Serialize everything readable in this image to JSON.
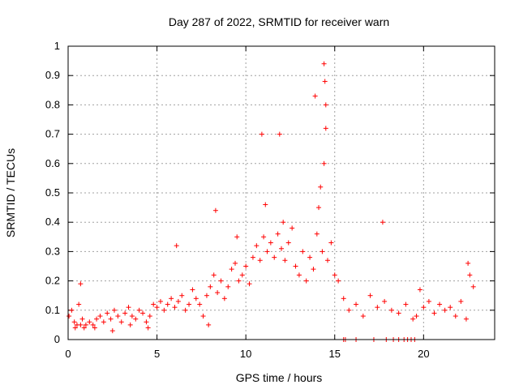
{
  "chart_data": {
    "type": "scatter",
    "title": "Day 287 of 2022, SRMTID for receiver warn",
    "xlabel": "GPS time / hours",
    "ylabel": "SRMTID / TECUs",
    "xlim": [
      0,
      24
    ],
    "ylim": [
      0,
      1
    ],
    "xticks": [
      0,
      5,
      10,
      15,
      20
    ],
    "xtick_labels": [
      "0",
      "5",
      "10",
      "15",
      "20"
    ],
    "yticks": [
      0,
      0.1,
      0.2,
      0.3,
      0.4,
      0.5,
      0.6,
      0.7,
      0.8,
      0.9,
      1
    ],
    "ytick_labels": [
      "0",
      "0.1",
      "0.2",
      "0.3",
      "0.4",
      "0.5",
      "0.6",
      "0.7",
      "0.8",
      "0.9",
      "1"
    ],
    "grid": true,
    "marker": "plus",
    "color": "#ff0000",
    "series": [
      {
        "name": "SRMTID",
        "x": [
          0.05,
          0.2,
          0.35,
          0.5,
          0.6,
          0.7,
          0.8,
          0.9,
          1.0,
          1.2,
          1.4,
          1.6,
          1.8,
          2.0,
          2.2,
          2.4,
          2.6,
          2.8,
          3.0,
          3.2,
          3.4,
          3.6,
          3.8,
          4.0,
          4.2,
          4.4,
          4.6,
          4.8,
          5.0,
          5.2,
          5.4,
          5.6,
          5.8,
          6.0,
          6.2,
          6.4,
          6.6,
          6.8,
          7.0,
          7.2,
          7.4,
          7.6,
          7.8,
          8.0,
          8.2,
          8.4,
          8.6,
          8.8,
          9.0,
          9.2,
          9.4,
          9.6,
          9.8,
          10.0,
          10.2,
          10.4,
          10.6,
          10.8,
          11.0,
          11.1,
          11.2,
          11.4,
          11.6,
          11.8,
          12.0,
          12.1,
          12.2,
          12.4,
          12.6,
          12.8,
          13.0,
          13.2,
          13.4,
          13.6,
          13.8,
          14.0,
          14.1,
          14.2,
          14.3,
          14.4,
          14.5,
          14.6,
          14.8,
          15.0,
          15.2,
          15.5,
          15.8,
          16.2,
          16.6,
          17.0,
          17.4,
          17.8,
          18.2,
          18.6,
          19.0,
          19.4,
          19.6,
          19.8,
          20.0,
          20.3,
          20.6,
          20.9,
          21.2,
          21.5,
          21.8,
          22.1,
          22.4,
          22.6,
          22.8,
          0.4,
          0.7,
          1.5,
          2.5,
          3.5,
          4.5,
          6.1,
          7.9,
          8.3,
          9.5,
          10.9,
          11.9,
          13.9,
          14.4,
          14.45,
          14.5,
          17.7,
          22.5
        ],
        "y": [
          0.08,
          0.1,
          0.06,
          0.05,
          0.12,
          0.19,
          0.07,
          0.04,
          0.05,
          0.06,
          0.05,
          0.07,
          0.08,
          0.06,
          0.09,
          0.07,
          0.1,
          0.08,
          0.06,
          0.09,
          0.11,
          0.08,
          0.07,
          0.1,
          0.09,
          0.06,
          0.08,
          0.12,
          0.11,
          0.13,
          0.1,
          0.12,
          0.14,
          0.11,
          0.13,
          0.15,
          0.1,
          0.12,
          0.17,
          0.14,
          0.12,
          0.08,
          0.15,
          0.18,
          0.22,
          0.16,
          0.2,
          0.14,
          0.18,
          0.24,
          0.26,
          0.2,
          0.22,
          0.25,
          0.19,
          0.28,
          0.32,
          0.27,
          0.35,
          0.46,
          0.3,
          0.33,
          0.28,
          0.36,
          0.31,
          0.4,
          0.27,
          0.33,
          0.38,
          0.25,
          0.22,
          0.3,
          0.2,
          0.28,
          0.24,
          0.36,
          0.45,
          0.52,
          0.3,
          0.6,
          0.72,
          0.27,
          0.33,
          0.22,
          0.2,
          0.14,
          0.1,
          0.12,
          0.08,
          0.15,
          0.11,
          0.13,
          0.1,
          0.09,
          0.12,
          0.07,
          0.08,
          0.17,
          0.11,
          0.13,
          0.09,
          0.12,
          0.1,
          0.11,
          0.08,
          0.13,
          0.07,
          0.22,
          0.18,
          0.04,
          0.05,
          0.04,
          0.03,
          0.05,
          0.04,
          0.32,
          0.05,
          0.44,
          0.35,
          0.7,
          0.7,
          0.83,
          0.94,
          0.88,
          0.8,
          0.4,
          0.26
        ],
        "zero_run_x": [
          15.5,
          15.6,
          16.2,
          17.2,
          17.9,
          18.3,
          18.6,
          18.9,
          19.1,
          19.3,
          19.5
        ]
      }
    ]
  }
}
